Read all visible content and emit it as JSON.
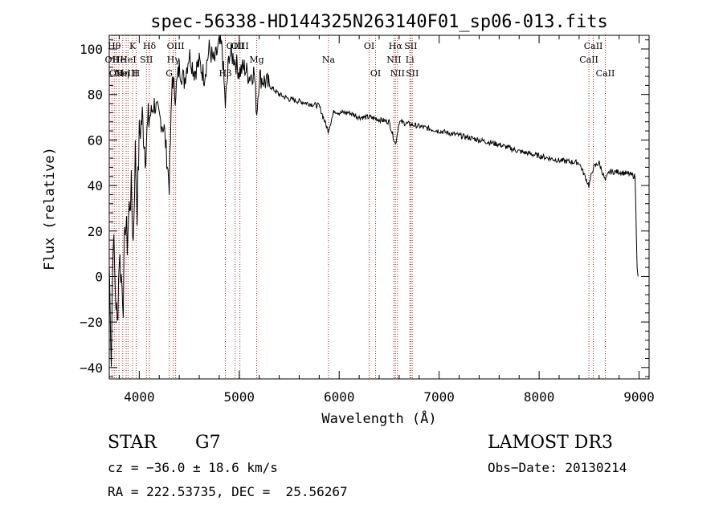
{
  "chart_data": {
    "type": "line",
    "title": "spec-56338-HD144325N263140F01_sp06-013.fits",
    "xlabel": "Wavelength (Å)",
    "ylabel": "Flux (relative)",
    "xlim": [
      3700,
      9100
    ],
    "ylim": [
      -45,
      106
    ],
    "xticks": [
      4000,
      5000,
      6000,
      7000,
      8000,
      9000
    ],
    "yticks": [
      -40,
      -20,
      0,
      20,
      40,
      60,
      80,
      100
    ],
    "grid": false,
    "spectrum": {
      "x": [
        3700,
        3720,
        3740,
        3760,
        3780,
        3800,
        3820,
        3840,
        3860,
        3880,
        3900,
        3920,
        3940,
        3960,
        3980,
        4000,
        4030,
        4060,
        4090,
        4120,
        4150,
        4200,
        4250,
        4300,
        4330,
        4360,
        4400,
        4450,
        4500,
        4550,
        4600,
        4650,
        4700,
        4750,
        4800,
        4830,
        4861,
        4900,
        4950,
        5000,
        5050,
        5100,
        5150,
        5175,
        5200,
        5250,
        5300,
        5400,
        5500,
        5600,
        5700,
        5800,
        5890,
        5950,
        6000,
        6100,
        6200,
        6300,
        6400,
        6500,
        6563,
        6600,
        6700,
        6800,
        6900,
        7000,
        7200,
        7400,
        7600,
        7800,
        8000,
        8200,
        8400,
        8498,
        8542,
        8600,
        8662,
        8700,
        8800,
        8900,
        8960,
        8980,
        8990
      ],
      "y": [
        5,
        -35,
        20,
        -5,
        -22,
        10,
        0,
        -10,
        25,
        15,
        30,
        38,
        15,
        55,
        30,
        62,
        70,
        55,
        68,
        72,
        76,
        70,
        65,
        40,
        88,
        80,
        92,
        86,
        98,
        90,
        94,
        88,
        100,
        94,
        102,
        100,
        75,
        98,
        96,
        90,
        92,
        88,
        90,
        72,
        88,
        86,
        84,
        80,
        78,
        77,
        76,
        75,
        64,
        73,
        72,
        72,
        70,
        70,
        69,
        68,
        58,
        68,
        67,
        66,
        65,
        64,
        62,
        60,
        58,
        55,
        53,
        51,
        50,
        40,
        48,
        50,
        42,
        46,
        46,
        45,
        44,
        5,
        0
      ]
    },
    "lines": [
      {
        "wl": 3727,
        "label": "OII",
        "row": 2
      },
      {
        "wl": 3750,
        "label": "Hθ",
        "row": 1
      },
      {
        "wl": 3770,
        "label": "OII",
        "row": 3
      },
      {
        "wl": 3797,
        "label": "He",
        "row": 2
      },
      {
        "wl": 3835,
        "label": "Hη",
        "row": 3
      },
      {
        "wl": 3869,
        "label": "NeIII",
        "row": 3
      },
      {
        "wl": 3889,
        "label": "HeI",
        "row": 2
      },
      {
        "wl": 3934,
        "label": "K",
        "row": 1
      },
      {
        "wl": 3969,
        "label": "H",
        "row": 3
      },
      {
        "wl": 4072,
        "label": "SII",
        "row": 2
      },
      {
        "wl": 4102,
        "label": "Hδ",
        "row": 1
      },
      {
        "wl": 4300,
        "label": "G",
        "row": 3
      },
      {
        "wl": 4341,
        "label": "Hγ",
        "row": 2
      },
      {
        "wl": 4364,
        "label": "OIII",
        "row": 1
      },
      {
        "wl": 4861,
        "label": "Hβ",
        "row": 3
      },
      {
        "wl": 4959,
        "label": "OIII",
        "row": 1
      },
      {
        "wl": 5007,
        "label": "OIII",
        "row": 1
      },
      {
        "wl": 5175,
        "label": "Mg",
        "row": 2
      },
      {
        "wl": 5893,
        "label": "Na",
        "row": 2
      },
      {
        "wl": 6300,
        "label": "OI",
        "row": 1
      },
      {
        "wl": 6364,
        "label": "OI",
        "row": 3
      },
      {
        "wl": 6548,
        "label": "NII",
        "row": 2
      },
      {
        "wl": 6563,
        "label": "Hα",
        "row": 1
      },
      {
        "wl": 6583,
        "label": "NII",
        "row": 3
      },
      {
        "wl": 6707,
        "label": "Li",
        "row": 2
      },
      {
        "wl": 6716,
        "label": "SII",
        "row": 1
      },
      {
        "wl": 6731,
        "label": "SII",
        "row": 3
      },
      {
        "wl": 8498,
        "label": "CaII",
        "row": 2
      },
      {
        "wl": 8542,
        "label": "CaII",
        "row": 1
      },
      {
        "wl": 8662,
        "label": "CaII",
        "row": 3
      }
    ]
  },
  "info": {
    "object_class": "STAR",
    "subclass": "G7",
    "cz": "cz = −36.0 ± 18.6 km/s",
    "coords": "RA = 222.53735, DEC =  25.56267",
    "survey": "LAMOST DR3",
    "obs_date": "Obs−Date: 20130214"
  }
}
